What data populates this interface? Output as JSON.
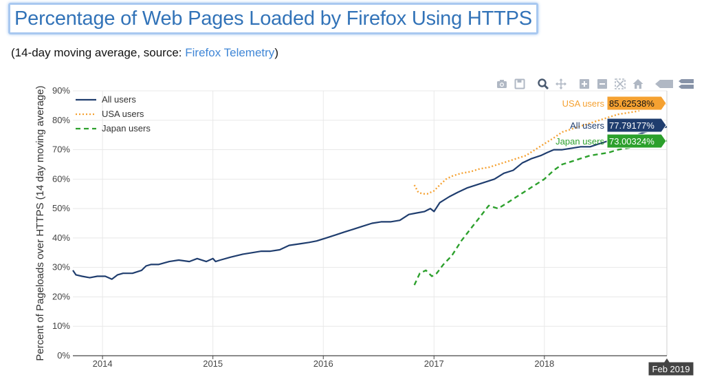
{
  "title": "Percentage of Web Pages Loaded by Firefox Using HTTPS",
  "subtitle": {
    "prefix": "(14-day moving average, source: ",
    "link_text": "Firefox Telemetry",
    "suffix": ")"
  },
  "modebar": {
    "icons": [
      "camera-icon",
      "save-icon",
      "zoom-icon",
      "pan-icon",
      "zoom-in-icon",
      "zoom-out-icon",
      "autoscale-icon",
      "home-icon",
      "hover-closest-icon",
      "hover-compare-icon"
    ]
  },
  "colors": {
    "all": "#1f3d6e",
    "usa": "#f5a131",
    "japan": "#2ca02c",
    "grid": "#e8e8e8",
    "axis": "#444444"
  },
  "chart_data": {
    "type": "line",
    "title": "Percentage of Web Pages Loaded by Firefox Using HTTPS",
    "ylabel": "Percent of Pageloads over HTTPS (14 day moving average)",
    "xlabel": "",
    "ylim": [
      0,
      90
    ],
    "xlim": [
      "2013-09-25",
      "2019-02-10"
    ],
    "yticks": [
      0,
      10,
      20,
      30,
      40,
      50,
      60,
      70,
      80,
      90
    ],
    "ytick_labels": [
      "0%",
      "10%",
      "20%",
      "30%",
      "40%",
      "50%",
      "60%",
      "70%",
      "80%",
      "90%"
    ],
    "xticks": [
      "2014-01-01",
      "2015-01-01",
      "2016-01-01",
      "2017-01-01",
      "2018-01-01"
    ],
    "xtick_labels": [
      "2014",
      "2015",
      "2016",
      "2017",
      "2018"
    ],
    "grid": true,
    "legend_position": "top-left",
    "series": [
      {
        "name": "All users",
        "style": "solid",
        "x": [
          "2013-09-25",
          "2013-10-05",
          "2013-10-25",
          "2013-11-20",
          "2013-12-15",
          "2014-01-10",
          "2014-02-01",
          "2014-02-20",
          "2014-03-10",
          "2014-04-10",
          "2014-05-10",
          "2014-05-25",
          "2014-06-10",
          "2014-07-05",
          "2014-08-10",
          "2014-09-10",
          "2014-10-15",
          "2014-11-10",
          "2014-12-10",
          "2015-01-01",
          "2015-01-10",
          "2015-01-25",
          "2015-03-01",
          "2015-04-10",
          "2015-05-10",
          "2015-06-10",
          "2015-07-10",
          "2015-08-10",
          "2015-09-10",
          "2015-10-15",
          "2015-11-15",
          "2015-12-10",
          "2016-01-10",
          "2016-02-10",
          "2016-03-10",
          "2016-04-10",
          "2016-05-10",
          "2016-06-10",
          "2016-07-10",
          "2016-08-10",
          "2016-09-10",
          "2016-10-10",
          "2016-11-05",
          "2016-12-01",
          "2016-12-20",
          "2017-01-01",
          "2017-01-20",
          "2017-02-20",
          "2017-03-20",
          "2017-04-20",
          "2017-05-20",
          "2017-06-20",
          "2017-07-20",
          "2017-08-20",
          "2017-09-20",
          "2017-10-20",
          "2017-11-20",
          "2017-12-20",
          "2018-01-10",
          "2018-02-01",
          "2018-03-01",
          "2018-04-01",
          "2018-05-01",
          "2018-06-01",
          "2018-07-01",
          "2018-08-01",
          "2018-09-01",
          "2018-10-01",
          "2018-11-01",
          "2018-12-01",
          "2019-01-01",
          "2019-02-01",
          "2019-02-10"
        ],
        "y": [
          29,
          27.5,
          27,
          26.5,
          27,
          27,
          26,
          27.5,
          28,
          28,
          29,
          30.5,
          31,
          31,
          32,
          32.5,
          32,
          33,
          32,
          33,
          32,
          32.5,
          33.5,
          34.5,
          35,
          35.5,
          35.5,
          36,
          37.5,
          38,
          38.5,
          39,
          40,
          41,
          42,
          43,
          44,
          45,
          45.5,
          45.5,
          46,
          48,
          48.5,
          49,
          50,
          49,
          52,
          54,
          55.5,
          57,
          58,
          59,
          60,
          62,
          63,
          65.5,
          67,
          68,
          69,
          70,
          70,
          70.5,
          71,
          71,
          72,
          73,
          73.5,
          74,
          75,
          76,
          76.5,
          77.5,
          77.79177
        ]
      },
      {
        "name": "USA users",
        "style": "dotted",
        "x": [
          "2016-10-28",
          "2016-11-10",
          "2016-11-25",
          "2016-12-10",
          "2017-01-01",
          "2017-01-20",
          "2017-02-10",
          "2017-03-01",
          "2017-04-01",
          "2017-05-01",
          "2017-06-01",
          "2017-07-01",
          "2017-08-01",
          "2017-09-01",
          "2017-10-01",
          "2017-11-01",
          "2017-12-01",
          "2018-01-01",
          "2018-02-01",
          "2018-03-01",
          "2018-04-01",
          "2018-05-01",
          "2018-06-01",
          "2018-07-01",
          "2018-08-01",
          "2018-09-01",
          "2018-10-01",
          "2018-11-01",
          "2018-12-01",
          "2019-01-01",
          "2019-02-10"
        ],
        "y": [
          58,
          55.5,
          55,
          55,
          56,
          58,
          60,
          61,
          62,
          62.5,
          63.5,
          64,
          65,
          66,
          67,
          68,
          70,
          72,
          74,
          76,
          77,
          78,
          79,
          80,
          81,
          82,
          82.5,
          83,
          84,
          85,
          85.62538
        ]
      },
      {
        "name": "Japan users",
        "style": "dashed",
        "x": [
          "2016-10-28",
          "2016-11-15",
          "2016-12-05",
          "2016-12-25",
          "2017-01-10",
          "2017-02-01",
          "2017-03-01",
          "2017-04-01",
          "2017-05-01",
          "2017-06-01",
          "2017-07-01",
          "2017-08-01",
          "2017-09-01",
          "2017-10-01",
          "2017-11-01",
          "2017-12-01",
          "2018-01-01",
          "2018-02-01",
          "2018-03-01",
          "2018-04-01",
          "2018-05-01",
          "2018-06-01",
          "2018-07-01",
          "2018-08-01",
          "2018-09-01",
          "2018-10-01",
          "2018-11-01",
          "2018-12-01",
          "2019-01-01",
          "2019-02-10"
        ],
        "y": [
          24,
          28,
          29,
          27,
          28,
          31,
          34,
          39,
          43,
          47,
          51,
          50,
          52,
          54,
          56,
          58,
          60,
          63,
          65,
          66,
          67,
          68,
          68.5,
          69,
          70,
          70.5,
          71,
          72,
          72.5,
          73.00324
        ]
      }
    ],
    "hover": {
      "date_label": "Feb 2019",
      "labels": [
        {
          "series": "USA users",
          "name_text": "USA users",
          "value_text": "85.62538%"
        },
        {
          "series": "All users",
          "name_text": "All users",
          "value_text": "77.79177%"
        },
        {
          "series": "Japan users",
          "name_text": "Japan users",
          "value_text": "73.00324%"
        }
      ]
    }
  }
}
